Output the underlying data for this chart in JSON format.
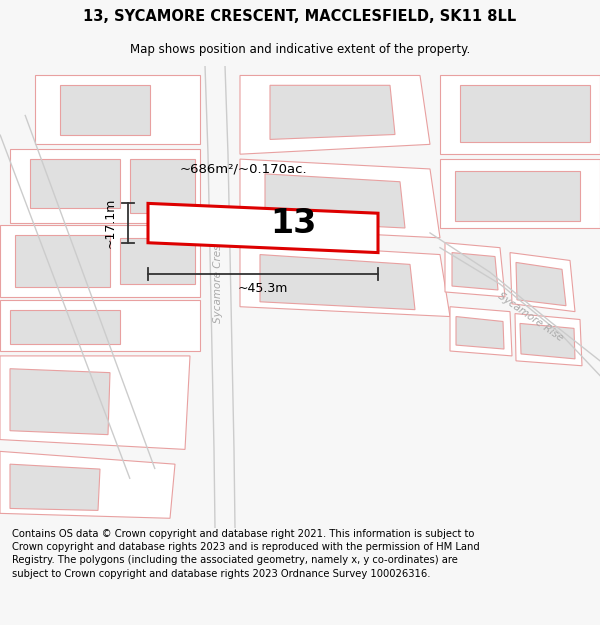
{
  "title_line1": "13, SYCAMORE CRESCENT, MACCLESFIELD, SK11 8LL",
  "title_line2": "Map shows position and indicative extent of the property.",
  "copyright_text": "Contains OS data © Crown copyright and database right 2021. This information is subject to Crown copyright and database rights 2023 and is reproduced with the permission of HM Land Registry. The polygons (including the associated geometry, namely x, y co-ordinates) are subject to Crown copyright and database rights 2023 Ordnance Survey 100026316.",
  "area_label": "~686m²/~0.170ac.",
  "width_label": "~45.3m",
  "height_label": "~17.1m",
  "property_number": "13",
  "bg_color": "#f7f7f7",
  "map_bg": "#ffffff",
  "building_color": "#e0e0e0",
  "building_edge": "#e8a0a0",
  "road_line_color": "#cccccc",
  "plot_line_color": "#e8a0a0",
  "highlight_color": "#dd0000",
  "street_label_color": "#aaaaaa",
  "title_fontsize": 10.5,
  "subtitle_fontsize": 8.5,
  "copyright_fontsize": 7.2,
  "label_fontsize": 9.5,
  "measure_fontsize": 9.0,
  "property_fontsize": 24
}
